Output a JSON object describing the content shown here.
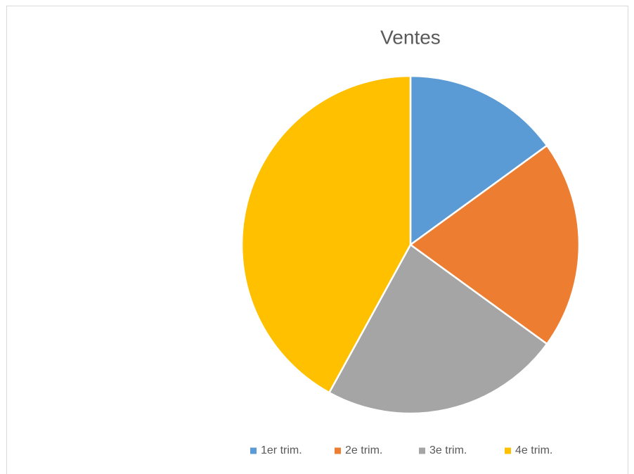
{
  "chart_data": {
    "type": "pie",
    "title": "Ventes",
    "categories": [
      "1er trim.",
      "2e trim.",
      "3e trim.",
      "4e trim."
    ],
    "values": [
      15,
      20,
      23,
      42
    ],
    "colors": [
      "#5b9bd5",
      "#ed7d31",
      "#a5a5a5",
      "#ffc000"
    ],
    "legend": "bottom"
  }
}
